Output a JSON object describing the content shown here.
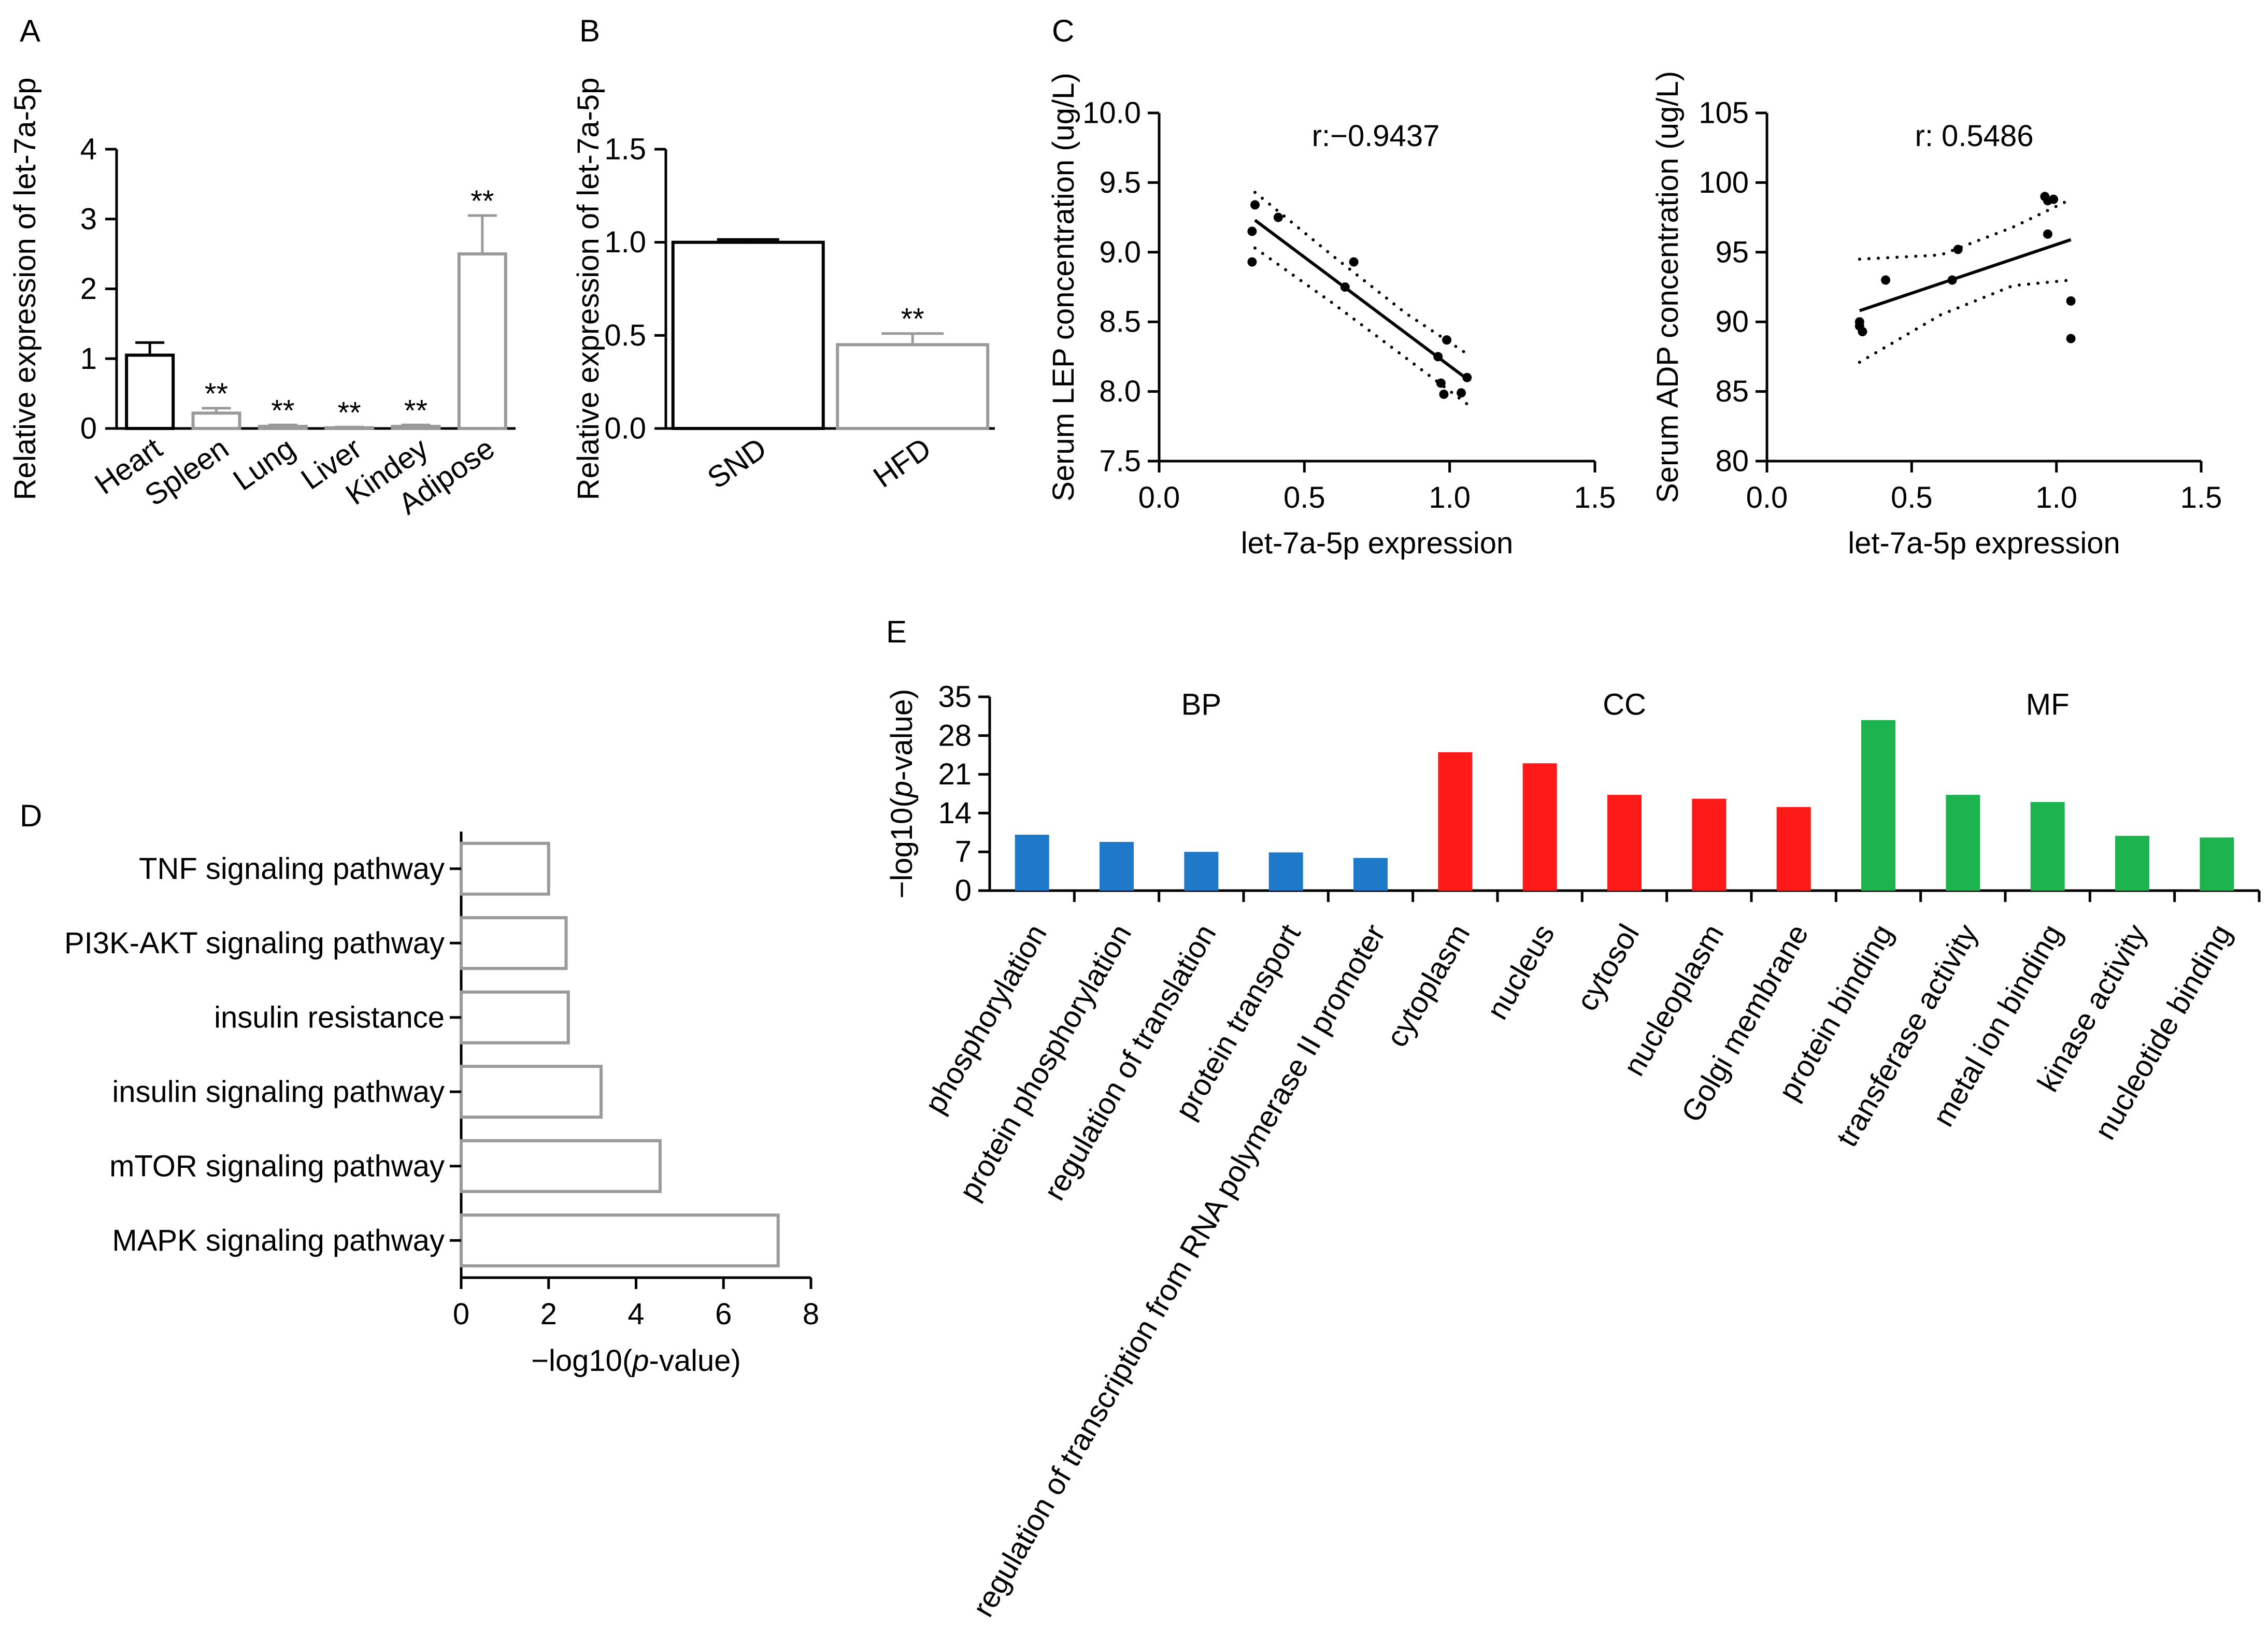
{
  "panels": {
    "A": "A",
    "B": "B",
    "C": "C",
    "D": "D",
    "E": "E"
  },
  "colors": {
    "axis": "#000000",
    "bar_black": "#000000",
    "bar_grey": "#9a9a9a",
    "bp_blue": "#1f78c8",
    "cc_red": "#ff1a1a",
    "mf_green": "#1db34f"
  },
  "chart_data": [
    {
      "id": "A",
      "type": "bar",
      "categories": [
        "Heart",
        "Spleen",
        "Lung",
        "Liver",
        "Kindey",
        "Adipose"
      ],
      "values": [
        1.05,
        0.22,
        0.03,
        0.01,
        0.03,
        2.5
      ],
      "errors": [
        0.18,
        0.07,
        0.02,
        0.01,
        0.02,
        0.55
      ],
      "stars": [
        "",
        "**",
        "**",
        "**",
        "**",
        "**"
      ],
      "outline": [
        "#000000",
        "#9a9a9a",
        "#9a9a9a",
        "#9a9a9a",
        "#9a9a9a",
        "#9a9a9a"
      ],
      "ylabel": "Relative expression of let-7a-5p",
      "ylim": [
        0,
        4
      ],
      "yticks": [
        "0",
        "1",
        "2",
        "3",
        "4"
      ],
      "ytick_values": [
        0,
        1,
        2,
        3,
        4
      ]
    },
    {
      "id": "B",
      "type": "bar",
      "categories": [
        "SND",
        "HFD"
      ],
      "values": [
        1.0,
        0.45
      ],
      "errors": [
        0.015,
        0.06
      ],
      "stars": [
        "",
        "**"
      ],
      "outline": [
        "#000000",
        "#9a9a9a"
      ],
      "ylabel": "Relative expression of let-7a-5p",
      "ylim": [
        0,
        1.5
      ],
      "yticks": [
        "0.0",
        "0.5",
        "1.0",
        "1.5"
      ],
      "ytick_values": [
        0,
        0.5,
        1.0,
        1.5
      ]
    },
    {
      "id": "C1",
      "type": "scatter",
      "xlabel": "let-7a-5p expression",
      "ylabel": "Serum LEP concentration (ug/L)",
      "annotation": "r:−0.9437",
      "xlim": [
        0,
        1.5
      ],
      "ylim": [
        7.5,
        10.0
      ],
      "xticks": [
        "0.0",
        "0.5",
        "1.0",
        "1.5"
      ],
      "xtick_values": [
        0,
        0.5,
        1.0,
        1.5
      ],
      "yticks": [
        "7.5",
        "8.0",
        "8.5",
        "9.0",
        "9.5",
        "10.0"
      ],
      "ytick_values": [
        7.5,
        8.0,
        8.5,
        9.0,
        9.5,
        10.0
      ],
      "points": [
        [
          0.33,
          9.34
        ],
        [
          0.32,
          9.15
        ],
        [
          0.32,
          8.93
        ],
        [
          0.41,
          9.25
        ],
        [
          0.64,
          8.75
        ],
        [
          0.67,
          8.93
        ],
        [
          0.96,
          8.25
        ],
        [
          0.99,
          8.37
        ],
        [
          0.97,
          8.06
        ],
        [
          0.98,
          7.98
        ],
        [
          1.04,
          7.99
        ],
        [
          1.06,
          8.1
        ]
      ],
      "fit": [
        [
          0.33,
          9.23
        ],
        [
          1.06,
          8.09
        ]
      ],
      "ci_upper": [
        [
          0.33,
          9.43
        ],
        [
          0.6,
          8.97
        ],
        [
          0.85,
          8.56
        ],
        [
          1.06,
          8.27
        ]
      ],
      "ci_lower": [
        [
          0.33,
          9.03
        ],
        [
          0.6,
          8.63
        ],
        [
          0.85,
          8.24
        ],
        [
          1.06,
          7.91
        ]
      ]
    },
    {
      "id": "C2",
      "type": "scatter",
      "xlabel": "let-7a-5p expression",
      "ylabel": "Serum ADP concentration (ug/L)",
      "annotation": "r: 0.5486",
      "xlim": [
        0,
        1.5
      ],
      "ylim": [
        80,
        105
      ],
      "xticks": [
        "0.0",
        "0.5",
        "1.0",
        "1.5"
      ],
      "xtick_values": [
        0,
        0.5,
        1.0,
        1.5
      ],
      "yticks": [
        "80",
        "85",
        "90",
        "95",
        "100",
        "105"
      ],
      "ytick_values": [
        80,
        85,
        90,
        95,
        100,
        105
      ],
      "points": [
        [
          0.32,
          90.0
        ],
        [
          0.32,
          89.7
        ],
        [
          0.33,
          89.3
        ],
        [
          0.41,
          93.0
        ],
        [
          0.64,
          93.0
        ],
        [
          0.66,
          95.2
        ],
        [
          0.96,
          99.0
        ],
        [
          0.97,
          98.7
        ],
        [
          0.97,
          96.3
        ],
        [
          0.99,
          98.8
        ],
        [
          1.05,
          91.5
        ],
        [
          1.05,
          88.8
        ]
      ],
      "fit": [
        [
          0.32,
          90.8
        ],
        [
          1.05,
          95.9
        ]
      ],
      "ci_upper": [
        [
          0.32,
          94.5
        ],
        [
          0.6,
          94.8
        ],
        [
          0.85,
          96.8
        ],
        [
          1.05,
          98.8
        ]
      ],
      "ci_lower": [
        [
          0.32,
          87.1
        ],
        [
          0.6,
          90.5
        ],
        [
          0.85,
          92.6
        ],
        [
          1.05,
          93.0
        ]
      ]
    },
    {
      "id": "D",
      "type": "bar",
      "orientation": "horizontal",
      "categories": [
        "TNF signaling pathway",
        "PI3K-AKT signaling pathway",
        "insulin resistance",
        "insulin signaling pathway",
        "mTOR signaling pathway",
        "MAPK signaling pathway"
      ],
      "values": [
        2.0,
        2.4,
        2.45,
        3.2,
        4.55,
        7.25
      ],
      "xlabel_pre": "−log10(",
      "xlabel_italic": "p",
      "xlabel_post": "-value)",
      "xlim": [
        0,
        8
      ],
      "xticks": [
        "0",
        "2",
        "4",
        "6",
        "8"
      ],
      "xtick_values": [
        0,
        2,
        4,
        6,
        8
      ]
    },
    {
      "id": "E",
      "type": "bar",
      "groups": [
        {
          "name": "BP",
          "color": "#1f78c8",
          "categories": [
            "phosphorylation",
            "protein phosphorylation",
            "regulation of translation",
            "protein transport",
            "regulation of transcription from RNA polymerase II promoter"
          ],
          "values": [
            10.1,
            8.8,
            7.0,
            6.9,
            5.9
          ]
        },
        {
          "name": "CC",
          "color": "#ff1a1a",
          "categories": [
            "cytoplasm",
            "nucleus",
            "cytosol",
            "nucleoplasm",
            "Golgi membrane"
          ],
          "values": [
            25.0,
            23.0,
            17.3,
            16.6,
            15.1
          ]
        },
        {
          "name": "MF",
          "color": "#1db34f",
          "categories": [
            "protein binding",
            "transferase activity",
            "metal ion binding",
            "kinase activity",
            "nucleotide binding"
          ],
          "values": [
            30.8,
            17.3,
            16.0,
            9.9,
            9.6
          ]
        }
      ],
      "ylabel_pre": "−log10(",
      "ylabel_italic": "p",
      "ylabel_post": "-value)",
      "ylim": [
        0,
        35
      ],
      "yticks": [
        "0",
        "7",
        "14",
        "21",
        "28",
        "35"
      ],
      "ytick_values": [
        0,
        7,
        14,
        21,
        28,
        35
      ]
    }
  ]
}
